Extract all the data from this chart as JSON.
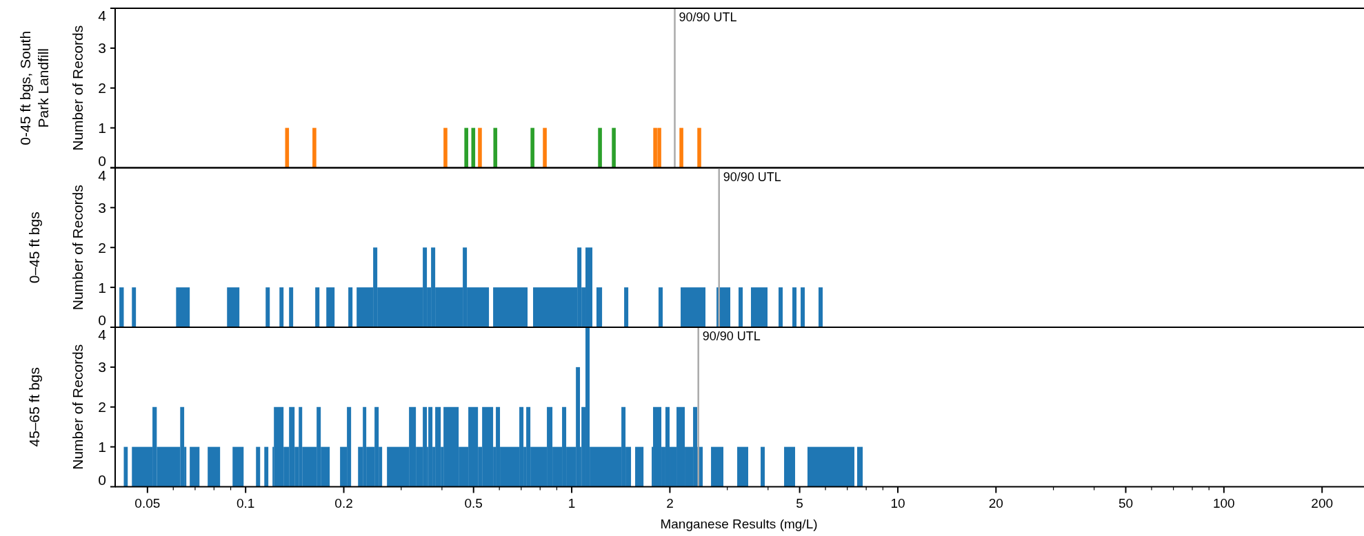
{
  "chart_data": [
    {
      "type": "bar",
      "title": "0-45 ft bgs, South Park Landfill",
      "ylabel": "Number of Records",
      "log": "x",
      "xlim": [
        0.04,
        265
      ],
      "ylim": [
        0,
        4
      ],
      "yticks": [
        0,
        1,
        2,
        3,
        4
      ],
      "tick_labels": "y",
      "series": [
        {
          "color": "#ff7f0e",
          "x": [
            0.134,
            0.1625,
            0.41,
            0.523,
            0.827,
            1.803,
            1.856,
            2.169,
            2.461
          ],
          "values": [
            1,
            1,
            1,
            1,
            1,
            1,
            1,
            1,
            1
          ]
        },
        {
          "color": "#2ca02c",
          "x": [
            0.475,
            0.499,
            0.583,
            0.758,
            1.221,
            1.346
          ],
          "values": [
            1,
            1,
            1,
            1,
            1,
            1
          ]
        }
      ],
      "ref_lines": [
        {
          "axis": "x",
          "value": 2.07,
          "label": "90/90 UTL",
          "color": "#aaaaaa"
        }
      ]
    },
    {
      "type": "histogram",
      "title": "0–45 ft bgs",
      "ylabel": "Number of Records",
      "log": "x",
      "xlim": [
        0.04,
        265
      ],
      "ylim": [
        0,
        4
      ],
      "yticks": [
        0,
        1,
        2,
        3,
        4
      ],
      "tick_labels": "y",
      "color": "#1f77b4",
      "bins": [
        0.041,
        0.0423,
        0.0448,
        0.0461,
        0.0612,
        0.0674,
        0.0877,
        0.0957,
        0.1152,
        0.1186,
        0.127,
        0.1307,
        0.1359,
        0.1399,
        0.1635,
        0.1684,
        0.1768,
        0.1874,
        0.2065,
        0.2127,
        0.219,
        0.2461,
        0.2534,
        0.3494,
        0.3597,
        0.3704,
        0.3814,
        0.4634,
        0.4771,
        0.5575,
        0.5741,
        0.7321,
        0.7612,
        1.04,
        1.071,
        1.102,
        1.157,
        1.191,
        1.239,
        1.448,
        1.491,
        1.846,
        1.901,
        2.158,
        2.571,
        2.78,
        3.064,
        3.248,
        3.345,
        3.545,
        3.985,
        4.308,
        4.436,
        4.749,
        4.89,
        5.035,
        5.184,
        5.713,
        5.883
      ],
      "values": [
        1,
        0,
        1,
        0,
        1,
        0,
        1,
        0,
        1,
        0,
        1,
        0,
        1,
        0,
        1,
        0,
        1,
        0,
        1,
        0,
        1,
        2,
        1,
        2,
        1,
        2,
        1,
        2,
        1,
        0,
        1,
        0,
        1,
        2,
        1,
        2,
        0,
        1,
        0,
        1,
        0,
        1,
        0,
        1,
        0,
        1,
        0,
        1,
        0,
        1,
        0,
        1,
        0,
        1,
        0,
        1,
        0,
        1
      ],
      "ref_lines": [
        {
          "axis": "x",
          "value": 2.83,
          "label": "90/90 UTL",
          "color": "#aaaaaa"
        }
      ]
    },
    {
      "type": "histogram",
      "title": "45–65 ft bgs",
      "ylabel": "Number of Records",
      "xlabel": "Manganese Results (mg/L)",
      "log": "x",
      "xlim": [
        0.04,
        265
      ],
      "ylim": [
        0,
        4
      ],
      "yticks": [
        0,
        1,
        2,
        3,
        4
      ],
      "color": "#1f77b4",
      "xticks": [
        0.05,
        {
          "value": 0.06,
          "label": null
        },
        {
          "value": 0.07,
          "label": null
        },
        {
          "value": 0.08,
          "label": null
        },
        {
          "value": 0.09,
          "label": null
        },
        0.1,
        0.2,
        {
          "value": 0.3,
          "label": null
        },
        {
          "value": 0.4,
          "label": null
        },
        0.5,
        {
          "value": 0.6,
          "label": null
        },
        {
          "value": 0.7,
          "label": null
        },
        {
          "value": 0.8,
          "label": null
        },
        {
          "value": 0.9,
          "label": null
        },
        1,
        2,
        {
          "value": 3,
          "label": null
        },
        {
          "value": 4,
          "label": null
        },
        5,
        {
          "value": 6,
          "label": null
        },
        {
          "value": 7,
          "label": null
        },
        {
          "value": 8,
          "label": null
        },
        {
          "value": 9,
          "label": null
        },
        10,
        20,
        {
          "value": 30,
          "label": null
        },
        {
          "value": 40,
          "label": null
        },
        50,
        {
          "value": 60,
          "label": null
        },
        {
          "value": 70,
          "label": null
        },
        {
          "value": 80,
          "label": null
        },
        {
          "value": 90,
          "label": null
        },
        100,
        200
      ],
      "bins": [
        0.0423,
        0.0435,
        0.0448,
        0.0518,
        0.0534,
        0.063,
        0.0648,
        0.0658,
        0.0674,
        0.0722,
        0.0765,
        0.0835,
        0.0912,
        0.0986,
        0.1076,
        0.1108,
        0.1141,
        0.1174,
        0.1209,
        0.1221,
        0.1307,
        0.1359,
        0.1413,
        0.1455,
        0.1491,
        0.1651,
        0.17,
        0.1811,
        0.1948,
        0.2045,
        0.2106,
        0.2212,
        0.2288,
        0.2344,
        0.2485,
        0.2559,
        0.2622,
        0.2713,
        0.317,
        0.3328,
        0.3494,
        0.3597,
        0.3633,
        0.374,
        0.3814,
        0.3966,
        0.4044,
        0.4501,
        0.4818,
        0.5159,
        0.5312,
        0.5741,
        0.5853,
        0.6026,
        0.6907,
        0.7112,
        0.7253,
        0.7468,
        0.8392,
        0.8726,
        0.9341,
        0.9618,
        1.03,
        1.06,
        1.071,
        1.102,
        1.135,
        1.42,
        1.462,
        1.52,
        1.565,
        1.66,
        1.759,
        1.776,
        1.883,
        1.938,
        1.996,
        2.096,
        2.222,
        2.356,
        2.425,
        2.522,
        2.674,
        2.918,
        3.217,
        3.477,
        3.796,
        3.908,
        4.48,
        4.842,
        5.284,
        7.359,
        7.504,
        7.804
      ],
      "values": [
        1,
        0,
        1,
        2,
        1,
        2,
        1,
        0,
        1,
        0,
        1,
        0,
        1,
        0,
        1,
        0,
        1,
        0,
        1,
        2,
        1,
        2,
        1,
        2,
        1,
        2,
        1,
        0,
        1,
        2,
        0,
        1,
        2,
        1,
        2,
        1,
        0,
        1,
        2,
        1,
        2,
        1,
        2,
        1,
        2,
        1,
        2,
        1,
        2,
        1,
        2,
        1,
        2,
        1,
        2,
        1,
        2,
        1,
        2,
        1,
        2,
        1,
        3,
        1,
        2,
        4,
        1,
        2,
        1,
        0,
        1,
        0,
        1,
        2,
        1,
        2,
        1,
        2,
        1,
        2,
        1,
        0,
        1,
        0,
        1,
        0,
        1,
        0,
        1,
        0,
        1,
        0,
        1
      ],
      "ref_lines": [
        {
          "axis": "x",
          "value": 2.445,
          "label": "90/90 UTL",
          "color": "#aaaaaa"
        }
      ]
    }
  ]
}
